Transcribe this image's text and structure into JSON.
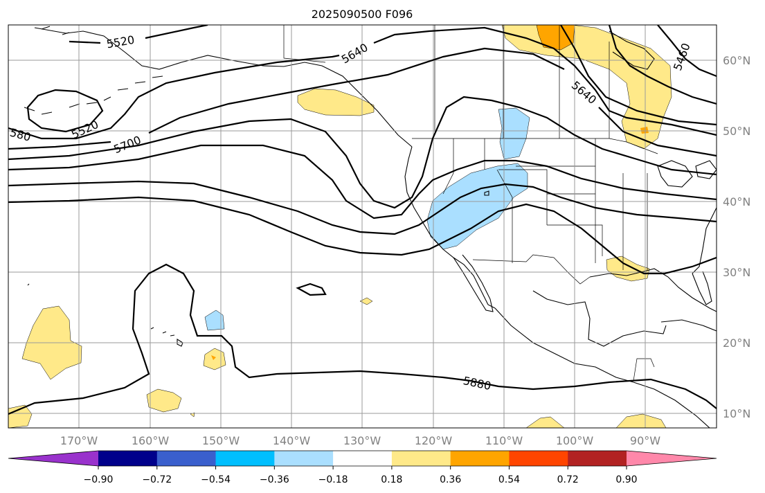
{
  "title": "2025090500 F096",
  "map": {
    "latitude_labels": [
      "60°N",
      "50°N",
      "40°N",
      "30°N",
      "20°N",
      "10°N"
    ],
    "longitude_labels": [
      "170°W",
      "160°W",
      "150°W",
      "140°W",
      "130°W",
      "120°W",
      "110°W",
      "100°W",
      "90°W"
    ],
    "contour_labels": [
      "5520",
      "5520",
      "580",
      "5700",
      "5640",
      "5640",
      "5460",
      "5880"
    ]
  },
  "colorbar": {
    "ticks": [
      "−0.90",
      "−0.72",
      "−0.54",
      "−0.36",
      "−0.18",
      "0.18",
      "0.36",
      "0.54",
      "0.72",
      "0.90"
    ],
    "colors": [
      "#9932cc",
      "#00008b",
      "#3a5fcd",
      "#00bfff",
      "#aadfff",
      "#ffffff",
      "#ffe989",
      "#ffa500",
      "#ff4500",
      "#b22222",
      "#ff88aa"
    ]
  }
}
